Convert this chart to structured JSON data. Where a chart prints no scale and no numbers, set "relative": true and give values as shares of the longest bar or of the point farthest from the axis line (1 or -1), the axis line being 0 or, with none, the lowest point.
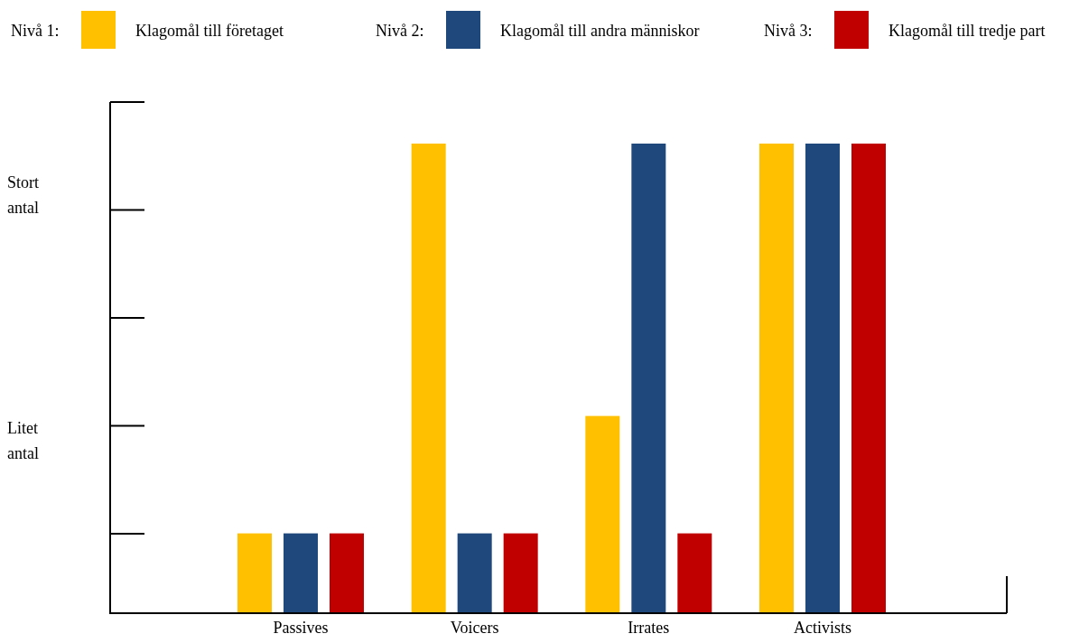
{
  "chart_data": {
    "type": "bar",
    "relative": true,
    "legend": "top",
    "categories": [
      "Passives",
      "Voicers",
      "Irrates",
      "Activists"
    ],
    "series": [
      {
        "name": "Klagomål till företaget",
        "color": "#ffc000",
        "values": [
          0.17,
          1,
          0.42,
          1
        ]
      },
      {
        "name": "Klagomål till andra människor",
        "color": "#1f497d",
        "values": [
          0.17,
          0.17,
          1,
          1
        ]
      },
      {
        "name": "Klagomål till tredje part",
        "color": "#c00000",
        "values": [
          0.17,
          0.17,
          0.17,
          1
        ]
      }
    ],
    "annotations": [
      "Nivå 1:",
      "Nivå 2:",
      "Nivå 3:",
      "Stort antal",
      "Litet antal"
    ]
  }
}
